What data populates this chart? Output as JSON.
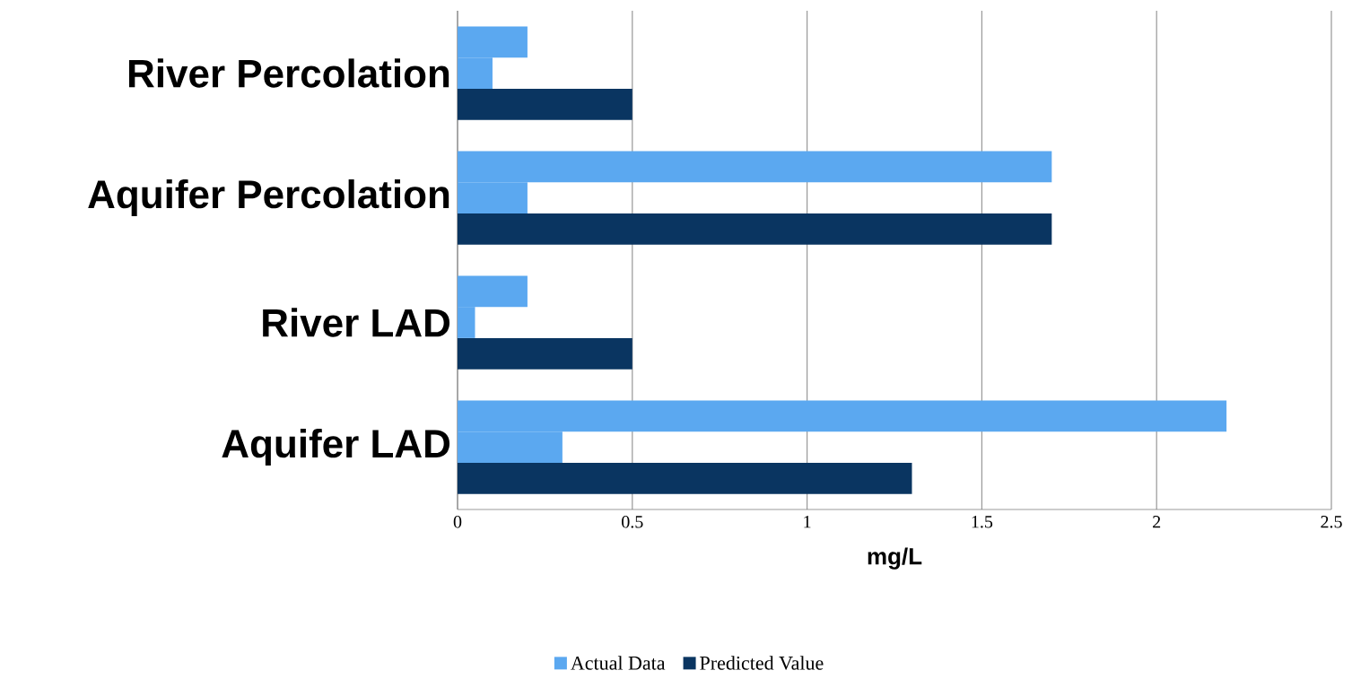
{
  "chart_data": {
    "type": "bar",
    "orientation": "horizontal",
    "xlabel": "mg/L",
    "categories": [
      "River Percolation",
      "Aquifer Percolation",
      "River LAD",
      "Aquifer LAD"
    ],
    "series": [
      {
        "name": "Actual Data",
        "color": "#5ba8f0",
        "values": [
          0.2,
          1.7,
          0.2,
          2.2
        ]
      },
      {
        "color": "#5ba8f0",
        "values": [
          0.1,
          0.2,
          0.05,
          0.3
        ]
      },
      {
        "name": "Predicted Value",
        "color": "#0a3561",
        "values": [
          0.5,
          1.7,
          0.5,
          1.3
        ]
      }
    ],
    "xlim": [
      0,
      2.5
    ],
    "xticks": [
      0,
      0.5,
      1,
      1.5,
      2,
      2.5
    ],
    "grid": "x",
    "legend": "bottom"
  }
}
